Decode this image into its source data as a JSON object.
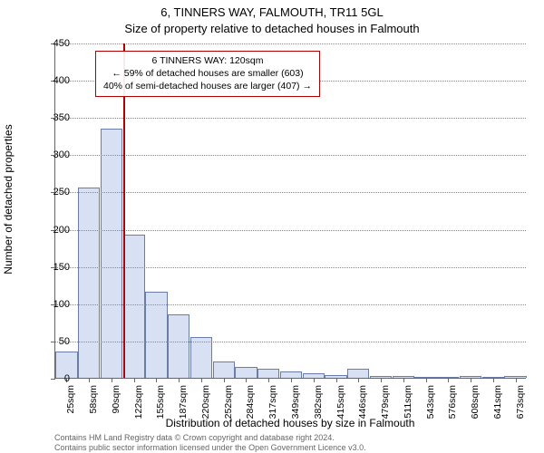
{
  "title_main": "6, TINNERS WAY, FALMOUTH, TR11 5GL",
  "title_sub": "Size of property relative to detached houses in Falmouth",
  "y_label": "Number of detached properties",
  "x_label": "Distribution of detached houses by size in Falmouth",
  "chart": {
    "type": "histogram",
    "ylim": [
      0,
      450
    ],
    "ytick_step": 50,
    "bar_fill": "#d8e1f3",
    "bar_stroke": "#6a7da8",
    "grid_color": "#888888",
    "background": "#ffffff",
    "axis_color": "#666666",
    "marker_color": "#b00000",
    "categories": [
      "25sqm",
      "58sqm",
      "90sqm",
      "122sqm",
      "155sqm",
      "187sqm",
      "220sqm",
      "252sqm",
      "284sqm",
      "317sqm",
      "349sqm",
      "382sqm",
      "415sqm",
      "446sqm",
      "479sqm",
      "511sqm",
      "543sqm",
      "576sqm",
      "608sqm",
      "641sqm",
      "673sqm"
    ],
    "values": [
      35,
      255,
      335,
      192,
      115,
      85,
      55,
      22,
      15,
      12,
      8,
      6,
      4,
      12,
      3,
      2,
      0,
      0,
      3,
      0,
      2
    ],
    "marker_index": 3,
    "annotation_lines": [
      "6 TINNERS WAY: 120sqm",
      "← 59% of detached houses are smaller (603)",
      "40% of semi-detached houses are larger (407) →"
    ],
    "title_fontsize": 13,
    "label_fontsize": 12,
    "tick_fontsize": 11,
    "annotation_fontsize": 10.5
  },
  "footer_line1": "Contains HM Land Registry data © Crown copyright and database right 2024.",
  "footer_line2": "Contains public sector information licensed under the Open Government Licence v3.0."
}
